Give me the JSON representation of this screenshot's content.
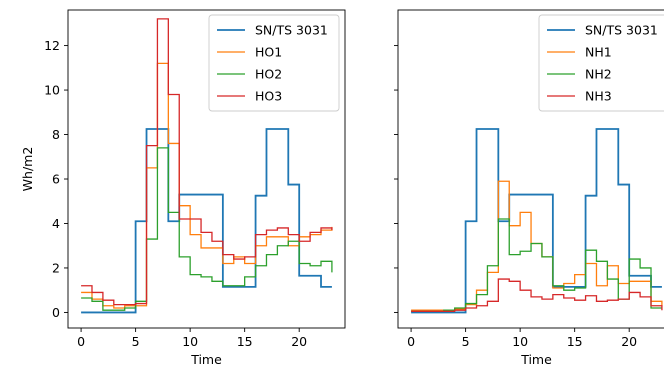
{
  "chart_data": [
    {
      "type": "line",
      "step": "post",
      "xlabel": "Time",
      "ylabel": "Wh/m2",
      "xlim": [
        -1.2,
        24.2
      ],
      "ylim": [
        -0.7,
        13.6
      ],
      "xticks": [
        0,
        5,
        10,
        15,
        20
      ],
      "yticks": [
        0,
        2,
        4,
        6,
        8,
        10,
        12
      ],
      "grid": false,
      "legend_position": "top-right",
      "x": [
        0,
        1,
        2,
        3,
        4,
        5,
        6,
        7,
        8,
        9,
        10,
        11,
        12,
        13,
        14,
        15,
        16,
        17,
        18,
        19,
        20,
        21,
        22,
        23
      ],
      "series": [
        {
          "name": "SN/TS 3031",
          "color": "#1f77b4",
          "values": [
            0,
            0,
            0,
            0,
            0,
            4.1,
            8.25,
            8.25,
            4.1,
            5.3,
            5.3,
            5.3,
            5.3,
            1.15,
            1.15,
            1.15,
            5.25,
            8.25,
            8.25,
            5.75,
            1.65,
            1.65,
            1.15,
            1.15
          ]
        },
        {
          "name": "HO1",
          "color": "#ff7f0e",
          "values": [
            0.9,
            0.6,
            0.3,
            0.2,
            0.3,
            0.3,
            6.5,
            11.2,
            7.6,
            4.8,
            3.5,
            2.9,
            2.9,
            2.2,
            2.5,
            2.2,
            3.0,
            3.4,
            3.4,
            3.0,
            3.4,
            3.5,
            3.7,
            3.85
          ]
        },
        {
          "name": "HO2",
          "color": "#2ca02c",
          "values": [
            0.65,
            0.5,
            0.1,
            0.1,
            0.2,
            0.5,
            3.3,
            7.4,
            4.5,
            2.5,
            1.7,
            1.6,
            1.4,
            1.2,
            1.2,
            1.6,
            2.1,
            2.6,
            3.0,
            3.2,
            2.2,
            2.1,
            2.3,
            1.8
          ]
        },
        {
          "name": "HO3",
          "color": "#d62728",
          "values": [
            1.2,
            0.9,
            0.55,
            0.35,
            0.35,
            0.4,
            7.5,
            13.2,
            9.8,
            4.2,
            4.2,
            3.6,
            3.2,
            2.6,
            2.4,
            2.5,
            3.5,
            3.7,
            3.8,
            3.5,
            3.2,
            3.6,
            3.8,
            3.7
          ]
        }
      ]
    },
    {
      "type": "line",
      "step": "post",
      "xlabel": "Time",
      "ylabel": "",
      "xlim": [
        -1.2,
        24.2
      ],
      "ylim": [
        -0.7,
        13.6
      ],
      "xticks": [
        0,
        5,
        10,
        15,
        20
      ],
      "yticks": [
        0,
        2,
        4,
        6,
        8,
        10,
        12
      ],
      "show_ytick_labels": false,
      "grid": false,
      "legend_position": "top-right",
      "x": [
        0,
        1,
        2,
        3,
        4,
        5,
        6,
        7,
        8,
        9,
        10,
        11,
        12,
        13,
        14,
        15,
        16,
        17,
        18,
        19,
        20,
        21,
        22,
        23
      ],
      "series": [
        {
          "name": "SN/TS 3031",
          "color": "#1f77b4",
          "values": [
            0,
            0,
            0,
            0,
            0,
            4.1,
            8.25,
            8.25,
            4.1,
            5.3,
            5.3,
            5.3,
            5.3,
            1.15,
            1.15,
            1.15,
            5.25,
            8.25,
            8.25,
            5.75,
            1.65,
            1.65,
            1.15,
            1.15
          ]
        },
        {
          "name": "NH1",
          "color": "#ff7f0e",
          "values": [
            0.1,
            0.1,
            0.1,
            0.1,
            0.15,
            0.35,
            1.0,
            1.8,
            5.9,
            3.9,
            4.5,
            3.1,
            2.5,
            1.1,
            1.3,
            1.7,
            2.2,
            1.2,
            2.1,
            1.3,
            1.4,
            1.4,
            0.5,
            0.3
          ]
        },
        {
          "name": "NH2",
          "color": "#2ca02c",
          "values": [
            0.05,
            0.05,
            0.05,
            0.1,
            0.2,
            0.4,
            0.8,
            2.1,
            4.2,
            2.6,
            2.75,
            3.1,
            2.5,
            1.2,
            1.0,
            1.1,
            2.8,
            2.3,
            1.5,
            0.6,
            2.4,
            2.0,
            0.2,
            0.2
          ]
        },
        {
          "name": "NH3",
          "color": "#d62728",
          "values": [
            0.05,
            0.05,
            0.05,
            0.05,
            0.1,
            0.2,
            0.3,
            0.5,
            1.5,
            1.4,
            1.0,
            0.7,
            0.6,
            0.8,
            0.65,
            0.55,
            0.75,
            0.5,
            0.55,
            0.6,
            0.9,
            0.7,
            0.3,
            0.1
          ]
        }
      ]
    }
  ]
}
